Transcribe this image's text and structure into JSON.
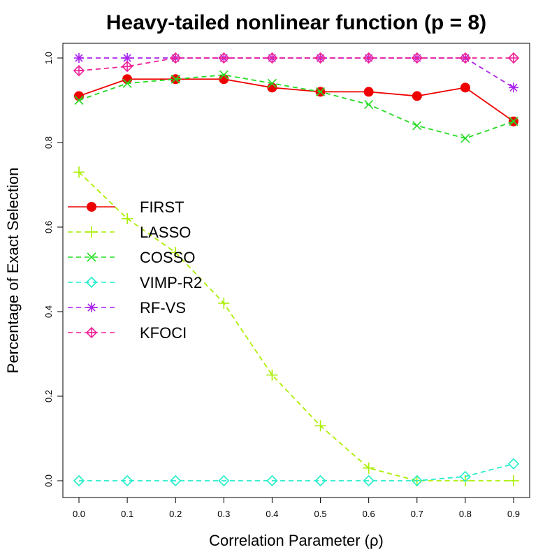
{
  "chart_data": {
    "type": "line",
    "title": "Heavy-tailed nonlinear function (p = 8)",
    "xlabel": "Correlation Parameter (ρ)",
    "ylabel": "Percentage of Exact Selection",
    "xlim": [
      0.0,
      0.9
    ],
    "ylim": [
      0.0,
      1.0
    ],
    "x": [
      0.0,
      0.1,
      0.2,
      0.3,
      0.4,
      0.5,
      0.6,
      0.7,
      0.8,
      0.9
    ],
    "x_tick_labels": [
      "0.0",
      "0.1",
      "0.2",
      "0.3",
      "0.4",
      "0.5",
      "0.6",
      "0.7",
      "0.8",
      "0.9"
    ],
    "y_ticks": [
      0.0,
      0.2,
      0.4,
      0.6,
      0.8,
      1.0
    ],
    "y_tick_labels": [
      "0.0",
      "0.2",
      "0.4",
      "0.6",
      "0.8",
      "1.0"
    ],
    "grid": false,
    "legend_position": "left",
    "series": [
      {
        "name": "FIRST",
        "color": "#ee0000",
        "marker": "filled-circle",
        "dash": "solid",
        "values": [
          0.91,
          0.95,
          0.95,
          0.95,
          0.93,
          0.92,
          0.92,
          0.91,
          0.93,
          0.85
        ]
      },
      {
        "name": "LASSO",
        "color": "#aaee00",
        "marker": "plus",
        "dash": "dashed",
        "values": [
          0.73,
          0.62,
          0.54,
          0.42,
          0.25,
          0.13,
          0.03,
          0.0,
          0.0,
          0.0
        ]
      },
      {
        "name": "COSSO",
        "color": "#22dd22",
        "marker": "cross",
        "dash": "dashed",
        "values": [
          0.9,
          0.94,
          0.95,
          0.96,
          0.94,
          0.92,
          0.89,
          0.84,
          0.81,
          0.85
        ]
      },
      {
        "name": "VIMP-R2",
        "color": "#22eecc",
        "marker": "diamond",
        "dash": "dashed",
        "values": [
          0.0,
          0.0,
          0.0,
          0.0,
          0.0,
          0.0,
          0.0,
          0.0,
          0.01,
          0.04
        ]
      },
      {
        "name": "RF-VS",
        "color": "#aa22ee",
        "marker": "asterisk",
        "dash": "dashed",
        "values": [
          1.0,
          1.0,
          1.0,
          1.0,
          1.0,
          1.0,
          1.0,
          1.0,
          1.0,
          0.93
        ]
      },
      {
        "name": "KFOCI",
        "color": "#ee2299",
        "marker": "diamond-plus",
        "dash": "dashed",
        "values": [
          0.97,
          0.98,
          1.0,
          1.0,
          1.0,
          1.0,
          1.0,
          1.0,
          1.0,
          1.0
        ]
      }
    ]
  }
}
